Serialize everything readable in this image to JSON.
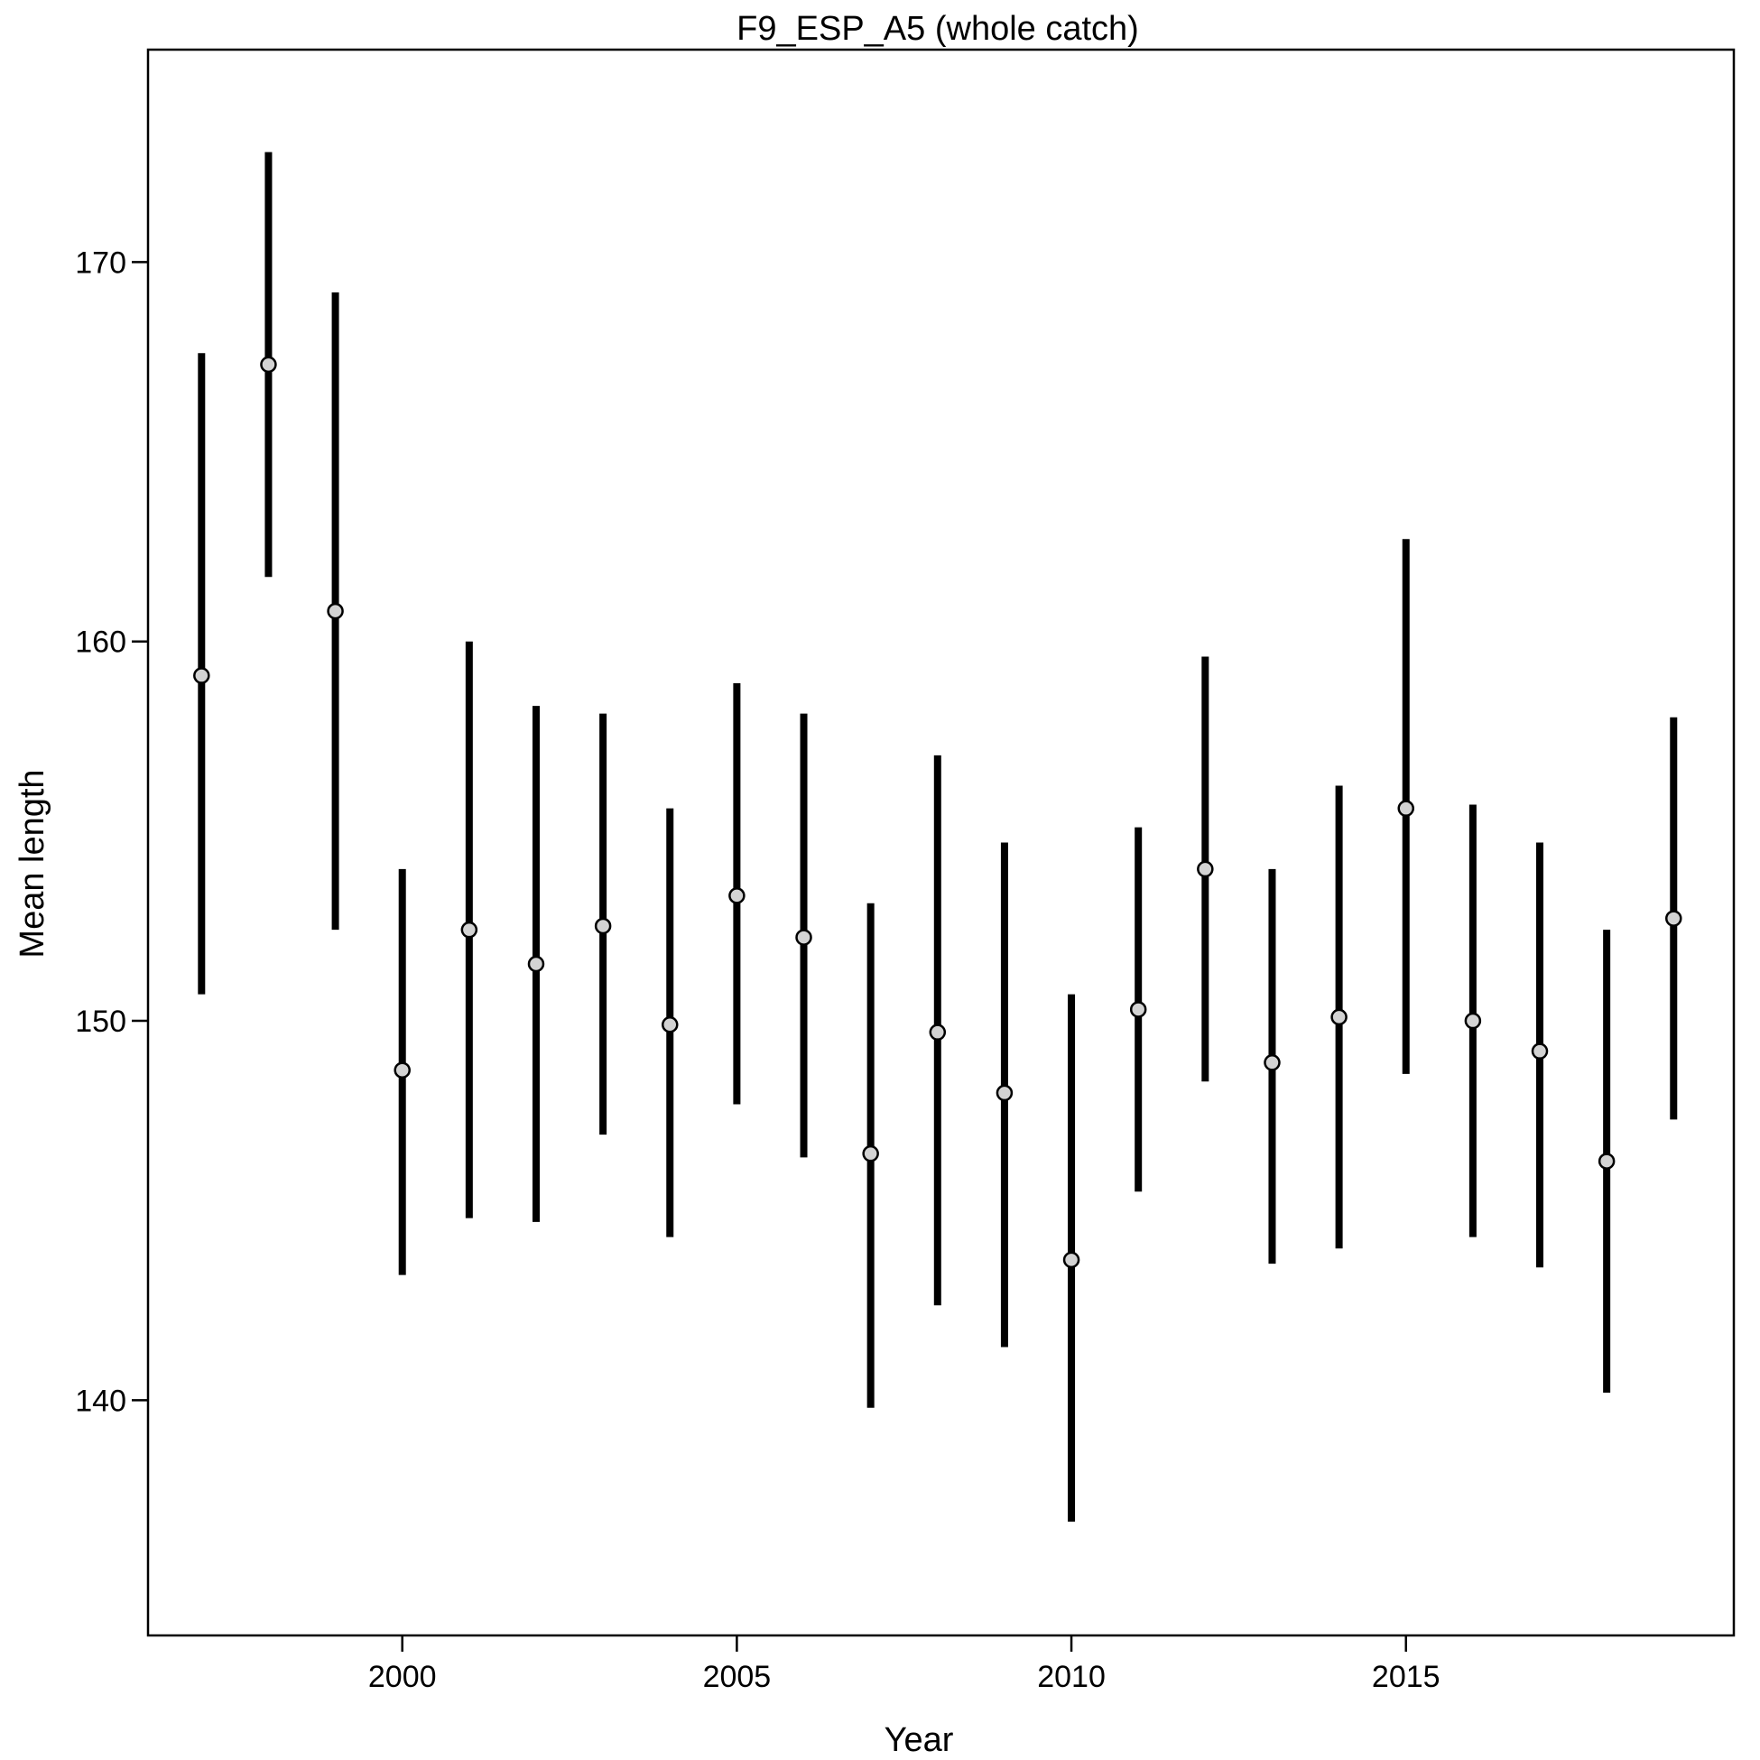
{
  "chart_data": {
    "type": "scatter",
    "title": "F9_ESP_A5 (whole catch)",
    "xlabel": "Year",
    "ylabel": "Mean length",
    "xlim": [
      1996.2,
      2019.9
    ],
    "ylim": [
      133.8,
      175.6
    ],
    "x_ticks": [
      2000,
      2005,
      2010,
      2015
    ],
    "y_ticks": [
      140,
      150,
      160,
      170
    ],
    "grid": false,
    "legend": "none",
    "point_fill": "#d3d3d3",
    "point_stroke": "#000000",
    "bar_color": "#000000",
    "points": [
      {
        "year": 1997,
        "mean": 159.1,
        "lower": 150.7,
        "upper": 167.6
      },
      {
        "year": 1998,
        "mean": 167.3,
        "lower": 161.7,
        "upper": 172.9
      },
      {
        "year": 1999,
        "mean": 160.8,
        "lower": 152.4,
        "upper": 169.2
      },
      {
        "year": 2000,
        "mean": 148.7,
        "lower": 143.3,
        "upper": 154.0
      },
      {
        "year": 2001,
        "mean": 152.4,
        "lower": 144.8,
        "upper": 160.0
      },
      {
        "year": 2002,
        "mean": 151.5,
        "lower": 144.7,
        "upper": 158.3
      },
      {
        "year": 2003,
        "mean": 152.5,
        "lower": 147.0,
        "upper": 158.1
      },
      {
        "year": 2004,
        "mean": 149.9,
        "lower": 144.3,
        "upper": 155.6
      },
      {
        "year": 2005,
        "mean": 153.3,
        "lower": 147.8,
        "upper": 158.9
      },
      {
        "year": 2006,
        "mean": 152.2,
        "lower": 146.4,
        "upper": 158.1
      },
      {
        "year": 2007,
        "mean": 146.5,
        "lower": 139.8,
        "upper": 153.1
      },
      {
        "year": 2008,
        "mean": 149.7,
        "lower": 142.5,
        "upper": 157.0
      },
      {
        "year": 2009,
        "mean": 148.1,
        "lower": 141.4,
        "upper": 154.7
      },
      {
        "year": 2010,
        "mean": 143.7,
        "lower": 136.8,
        "upper": 150.7
      },
      {
        "year": 2011,
        "mean": 150.3,
        "lower": 145.5,
        "upper": 155.1
      },
      {
        "year": 2012,
        "mean": 154.0,
        "lower": 148.4,
        "upper": 159.6
      },
      {
        "year": 2013,
        "mean": 148.9,
        "lower": 143.6,
        "upper": 154.0
      },
      {
        "year": 2014,
        "mean": 150.1,
        "lower": 144.0,
        "upper": 156.2
      },
      {
        "year": 2015,
        "mean": 155.6,
        "lower": 148.6,
        "upper": 162.7
      },
      {
        "year": 2016,
        "mean": 150.0,
        "lower": 144.3,
        "upper": 155.7
      },
      {
        "year": 2017,
        "mean": 149.2,
        "lower": 143.5,
        "upper": 154.7
      },
      {
        "year": 2018,
        "mean": 146.3,
        "lower": 140.2,
        "upper": 152.4
      },
      {
        "year": 2019,
        "mean": 152.7,
        "lower": 147.4,
        "upper": 158.0
      }
    ]
  }
}
